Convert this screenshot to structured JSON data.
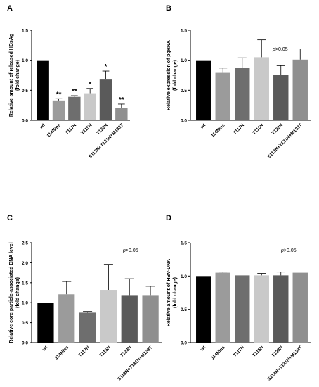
{
  "chart_data": [
    {
      "panel": "A",
      "type": "bar",
      "categories": [
        "wt",
        "114Nins",
        "T117N",
        "T115N",
        "T123N",
        "S113N+T131N+M133T"
      ],
      "values": [
        1.0,
        0.33,
        0.39,
        0.45,
        0.69,
        0.21
      ],
      "errors": [
        0.0,
        0.03,
        0.02,
        0.08,
        0.13,
        0.06
      ],
      "significance": [
        "",
        "**",
        "**",
        "*",
        "*",
        "**"
      ],
      "ylabel_lines": [
        "Relative amount of released HBsAg",
        "(fold change)"
      ],
      "ylim": [
        0,
        1.5
      ],
      "yticks": [
        "0.0",
        "0.5",
        "1.0",
        "1.5"
      ],
      "annotation": "",
      "colors": [
        "#000000",
        "#9b9b9b",
        "#6e6e6e",
        "#c9c9c9",
        "#5a5a5a",
        "#8f8f8f"
      ]
    },
    {
      "panel": "B",
      "type": "bar",
      "categories": [
        "wt",
        "114Nins",
        "T117N",
        "T115N",
        "T123N",
        "S113N+T131N+M133T"
      ],
      "values": [
        1.0,
        0.79,
        0.87,
        1.05,
        0.75,
        1.01
      ],
      "errors": [
        0.0,
        0.08,
        0.17,
        0.29,
        0.16,
        0.18
      ],
      "significance": [
        "",
        "",
        "",
        "",
        "",
        ""
      ],
      "ylabel_lines": [
        "Relative expression of pgRNA",
        "(fold change)"
      ],
      "ylim": [
        0,
        1.5
      ],
      "yticks": [
        "0.0",
        "0.5",
        "1.0",
        "1.5"
      ],
      "annotation": "p>0.05",
      "colors": [
        "#000000",
        "#9b9b9b",
        "#6e6e6e",
        "#c9c9c9",
        "#5a5a5a",
        "#8f8f8f"
      ]
    },
    {
      "panel": "C",
      "type": "bar",
      "categories": [
        "wt",
        "114Nins",
        "T117N",
        "T115N",
        "T123N",
        "S113N+T131N+M133T"
      ],
      "values": [
        1.0,
        1.21,
        0.75,
        1.32,
        1.19,
        1.19
      ],
      "errors": [
        0.0,
        0.32,
        0.03,
        0.64,
        0.41,
        0.22
      ],
      "significance": [
        "",
        "",
        "",
        "",
        "",
        ""
      ],
      "ylabel_lines": [
        "Relative core particle-associated DNA level",
        "(fold change)"
      ],
      "ylim": [
        0,
        2.5
      ],
      "yticks": [
        "0.0",
        "0.5",
        "1.0",
        "1.5",
        "2.0",
        "2.5"
      ],
      "annotation": "p>0.05",
      "colors": [
        "#000000",
        "#9b9b9b",
        "#6e6e6e",
        "#c9c9c9",
        "#5a5a5a",
        "#8f8f8f"
      ]
    },
    {
      "panel": "D",
      "type": "bar",
      "categories": [
        "wt",
        "114Nins",
        "T117N",
        "T115N",
        "T123N",
        "S113N+T131N+M133T"
      ],
      "values": [
        1.0,
        1.05,
        1.01,
        1.01,
        1.01,
        1.05
      ],
      "errors": [
        0.0,
        0.01,
        0.0,
        0.03,
        0.05,
        0.0
      ],
      "significance": [
        "",
        "",
        "",
        "",
        "",
        ""
      ],
      "ylabel_lines": [
        "Relative amount of HBV-DNA",
        "(fold change)"
      ],
      "ylim": [
        0,
        1.5
      ],
      "yticks": [
        "0.0",
        "0.5",
        "1.0",
        "1.5"
      ],
      "annotation": "p>0.05",
      "colors": [
        "#000000",
        "#9b9b9b",
        "#6e6e6e",
        "#c9c9c9",
        "#5a5a5a",
        "#8f8f8f"
      ]
    }
  ]
}
